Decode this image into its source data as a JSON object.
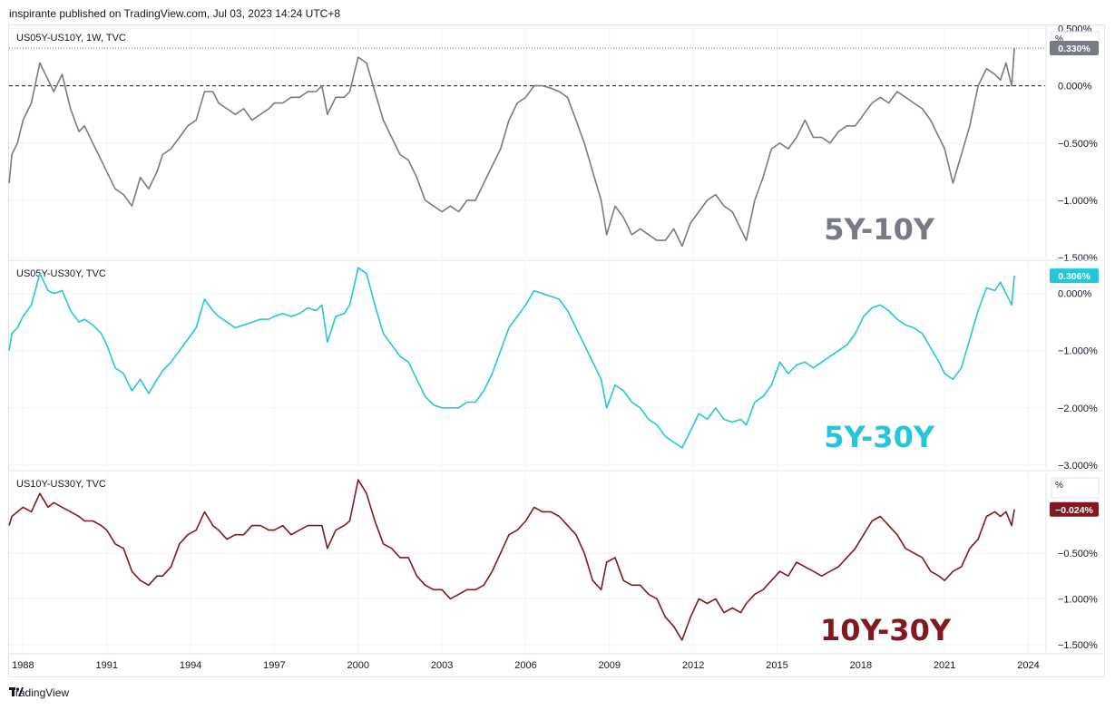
{
  "header": {
    "published_text": "inspirante published on TradingView.com, Jul 03, 2023 14:24 UTC+8"
  },
  "footer": {
    "logo_text": "TradingView",
    "logo_icon": "tradingview-logo-icon"
  },
  "colors": {
    "panel1_line": "#787b86",
    "panel2_line": "#26c6da",
    "panel3_line": "#801922",
    "grid": "#f0f3fa",
    "axis_text": "#131722",
    "panel_border": "#e0e3eb",
    "dashed_zero": "#131722"
  },
  "x_axis": {
    "tick_labels": [
      "1988",
      "1991",
      "1994",
      "1997",
      "2000",
      "2003",
      "2006",
      "2009",
      "2012",
      "2015",
      "2018",
      "2021",
      "2024"
    ],
    "tick_years": [
      1988,
      1991,
      1994,
      1997,
      2000,
      2003,
      2006,
      2009,
      2012,
      2015,
      2018,
      2021,
      2024
    ]
  },
  "chart_data": [
    {
      "type": "line",
      "symbol_label": "US05Y-US10Y, 1W, TVC",
      "watermark": "5Y-10Y",
      "unit_label": "%",
      "last_value_label": "0.330%",
      "y_ticks": [
        "0.500%",
        "0.000%",
        "−0.500%",
        "−1.000%",
        "−1.500%"
      ],
      "y_tick_values": [
        0.5,
        0.0,
        -0.5,
        -1.0,
        -1.5
      ],
      "ylim": [
        -1.5,
        0.52
      ],
      "zero_line": "dashed",
      "last_value_line": "dotted",
      "series": [
        {
          "x": [
            1987.5,
            1987.6,
            1987.8,
            1988.0,
            1988.3,
            1988.6,
            1988.9,
            1989.1,
            1989.4,
            1989.7,
            1990.0,
            1990.2,
            1990.5,
            1990.8,
            1991.0,
            1991.3,
            1991.6,
            1991.9,
            1992.2,
            1992.5,
            1992.8,
            1993.0,
            1993.3,
            1993.6,
            1993.9,
            1994.2,
            1994.5,
            1994.8,
            1995.0,
            1995.3,
            1995.6,
            1995.9,
            1996.2,
            1996.5,
            1996.8,
            1997.0,
            1997.3,
            1997.6,
            1997.9,
            1998.2,
            1998.5,
            1998.7,
            1998.9,
            1999.2,
            1999.5,
            1999.7,
            2000.0,
            2000.3,
            2000.6,
            2000.9,
            2001.2,
            2001.5,
            2001.8,
            2002.1,
            2002.4,
            2002.7,
            2003.0,
            2003.3,
            2003.6,
            2003.9,
            2004.2,
            2004.5,
            2004.8,
            2005.1,
            2005.4,
            2005.7,
            2006.0,
            2006.3,
            2006.6,
            2006.9,
            2007.2,
            2007.5,
            2007.8,
            2008.1,
            2008.4,
            2008.7,
            2008.9,
            2009.2,
            2009.5,
            2009.8,
            2010.1,
            2010.4,
            2010.7,
            2011.0,
            2011.3,
            2011.6,
            2011.9,
            2012.2,
            2012.5,
            2012.8,
            2013.1,
            2013.4,
            2013.7,
            2013.9,
            2014.2,
            2014.5,
            2014.8,
            2015.1,
            2015.4,
            2015.7,
            2016.0,
            2016.3,
            2016.6,
            2016.9,
            2017.2,
            2017.5,
            2017.8,
            2018.1,
            2018.4,
            2018.7,
            2019.0,
            2019.3,
            2019.6,
            2019.9,
            2020.2,
            2020.5,
            2020.8,
            2021.0,
            2021.3,
            2021.6,
            2021.9,
            2022.2,
            2022.5,
            2022.8,
            2023.0,
            2023.2,
            2023.4,
            2023.5
          ],
          "y": [
            -0.85,
            -0.6,
            -0.5,
            -0.3,
            -0.15,
            0.2,
            0.05,
            -0.05,
            0.1,
            -0.2,
            -0.4,
            -0.35,
            -0.5,
            -0.65,
            -0.75,
            -0.9,
            -0.95,
            -1.05,
            -0.8,
            -0.9,
            -0.75,
            -0.6,
            -0.55,
            -0.45,
            -0.35,
            -0.3,
            -0.05,
            -0.05,
            -0.15,
            -0.2,
            -0.25,
            -0.2,
            -0.3,
            -0.25,
            -0.2,
            -0.15,
            -0.15,
            -0.1,
            -0.1,
            -0.05,
            -0.05,
            0.0,
            -0.25,
            -0.1,
            -0.1,
            -0.05,
            0.25,
            0.2,
            -0.05,
            -0.3,
            -0.45,
            -0.6,
            -0.65,
            -0.8,
            -1.0,
            -1.05,
            -1.1,
            -1.05,
            -1.1,
            -1.0,
            -1.0,
            -0.85,
            -0.7,
            -0.55,
            -0.3,
            -0.15,
            -0.1,
            0.0,
            0.0,
            -0.02,
            -0.05,
            -0.1,
            -0.3,
            -0.5,
            -0.75,
            -1.0,
            -1.3,
            -1.05,
            -1.15,
            -1.3,
            -1.25,
            -1.3,
            -1.35,
            -1.35,
            -1.25,
            -1.4,
            -1.2,
            -1.1,
            -1.0,
            -0.95,
            -1.05,
            -1.1,
            -1.25,
            -1.35,
            -1.0,
            -0.8,
            -0.55,
            -0.5,
            -0.55,
            -0.45,
            -0.3,
            -0.45,
            -0.45,
            -0.5,
            -0.4,
            -0.35,
            -0.35,
            -0.25,
            -0.15,
            -0.1,
            -0.15,
            -0.05,
            -0.1,
            -0.15,
            -0.2,
            -0.3,
            -0.45,
            -0.55,
            -0.85,
            -0.6,
            -0.35,
            0.0,
            0.15,
            0.1,
            0.05,
            0.2,
            0.0,
            0.33
          ]
        }
      ]
    },
    {
      "type": "line",
      "symbol_label": "US05Y-US30Y, TVC",
      "watermark": "5Y-30Y",
      "unit_label": "%",
      "last_value_label": "0.306%",
      "y_ticks": [
        "0.000%",
        "−1.000%",
        "−2.000%",
        "−3.000%"
      ],
      "y_tick_values": [
        0.0,
        -1.0,
        -2.0,
        -3.0
      ],
      "ylim": [
        -3.05,
        0.55
      ],
      "series": [
        {
          "x": [
            1987.5,
            1987.6,
            1987.8,
            1988.0,
            1988.3,
            1988.6,
            1988.9,
            1989.1,
            1989.4,
            1989.7,
            1990.0,
            1990.2,
            1990.5,
            1990.8,
            1991.0,
            1991.3,
            1991.6,
            1991.9,
            1992.2,
            1992.5,
            1992.8,
            1993.0,
            1993.3,
            1993.6,
            1993.9,
            1994.2,
            1994.5,
            1994.8,
            1995.0,
            1995.3,
            1995.6,
            1995.9,
            1996.2,
            1996.5,
            1996.8,
            1997.0,
            1997.3,
            1997.6,
            1997.9,
            1998.2,
            1998.5,
            1998.7,
            1998.9,
            1999.2,
            1999.5,
            1999.7,
            2000.0,
            2000.3,
            2000.6,
            2000.9,
            2001.2,
            2001.5,
            2001.8,
            2002.1,
            2002.4,
            2002.7,
            2003.0,
            2003.3,
            2003.6,
            2003.9,
            2004.2,
            2004.5,
            2004.8,
            2005.1,
            2005.4,
            2005.7,
            2006.0,
            2006.3,
            2006.6,
            2006.9,
            2007.2,
            2007.5,
            2007.8,
            2008.1,
            2008.4,
            2008.7,
            2008.9,
            2009.2,
            2009.5,
            2009.8,
            2010.1,
            2010.4,
            2010.7,
            2011.0,
            2011.3,
            2011.6,
            2011.9,
            2012.2,
            2012.5,
            2012.8,
            2013.1,
            2013.4,
            2013.7,
            2013.9,
            2014.2,
            2014.5,
            2014.8,
            2015.1,
            2015.4,
            2015.7,
            2016.0,
            2016.3,
            2016.6,
            2016.9,
            2017.2,
            2017.5,
            2017.8,
            2018.1,
            2018.4,
            2018.7,
            2019.0,
            2019.3,
            2019.6,
            2019.9,
            2020.2,
            2020.5,
            2020.8,
            2021.0,
            2021.3,
            2021.6,
            2021.9,
            2022.2,
            2022.5,
            2022.8,
            2023.0,
            2023.2,
            2023.4,
            2023.5
          ],
          "y": [
            -1.0,
            -0.7,
            -0.6,
            -0.4,
            -0.2,
            0.35,
            0.05,
            0.0,
            0.05,
            -0.3,
            -0.5,
            -0.45,
            -0.55,
            -0.7,
            -0.9,
            -1.3,
            -1.4,
            -1.7,
            -1.5,
            -1.75,
            -1.5,
            -1.35,
            -1.2,
            -1.0,
            -0.8,
            -0.6,
            -0.1,
            -0.3,
            -0.4,
            -0.5,
            -0.6,
            -0.55,
            -0.5,
            -0.45,
            -0.45,
            -0.4,
            -0.35,
            -0.4,
            -0.35,
            -0.25,
            -0.3,
            -0.2,
            -0.85,
            -0.4,
            -0.35,
            -0.2,
            0.45,
            0.35,
            -0.2,
            -0.7,
            -0.9,
            -1.1,
            -1.2,
            -1.5,
            -1.8,
            -1.95,
            -2.0,
            -2.0,
            -2.0,
            -1.9,
            -1.9,
            -1.7,
            -1.4,
            -1.0,
            -0.6,
            -0.4,
            -0.2,
            0.05,
            0.0,
            -0.05,
            -0.1,
            -0.3,
            -0.6,
            -0.9,
            -1.2,
            -1.5,
            -2.0,
            -1.6,
            -1.7,
            -1.9,
            -2.0,
            -2.2,
            -2.3,
            -2.5,
            -2.6,
            -2.7,
            -2.4,
            -2.1,
            -2.2,
            -2.0,
            -2.2,
            -2.25,
            -2.2,
            -2.3,
            -1.9,
            -1.8,
            -1.6,
            -1.2,
            -1.4,
            -1.25,
            -1.2,
            -1.3,
            -1.2,
            -1.1,
            -1.0,
            -0.9,
            -0.7,
            -0.4,
            -0.25,
            -0.2,
            -0.3,
            -0.45,
            -0.55,
            -0.6,
            -0.7,
            -0.95,
            -1.2,
            -1.4,
            -1.5,
            -1.3,
            -0.8,
            -0.3,
            0.1,
            0.05,
            0.2,
            0.0,
            -0.2,
            0.31
          ]
        }
      ]
    },
    {
      "type": "line",
      "symbol_label": "US10Y-US30Y, TVC",
      "watermark": "10Y-30Y",
      "unit_label": "%",
      "last_value_label": "−0.024%",
      "y_ticks": [
        "−0.500%",
        "−1.000%",
        "−1.500%"
      ],
      "y_tick_values": [
        -0.5,
        -1.0,
        -1.5
      ],
      "ylim": [
        -1.58,
        0.38
      ],
      "series": [
        {
          "x": [
            1987.5,
            1987.6,
            1987.8,
            1988.0,
            1988.3,
            1988.6,
            1988.9,
            1989.1,
            1989.4,
            1989.7,
            1990.0,
            1990.2,
            1990.5,
            1990.8,
            1991.0,
            1991.3,
            1991.6,
            1991.9,
            1992.2,
            1992.5,
            1992.8,
            1993.0,
            1993.3,
            1993.6,
            1993.9,
            1994.2,
            1994.5,
            1994.8,
            1995.0,
            1995.3,
            1995.6,
            1995.9,
            1996.2,
            1996.5,
            1996.8,
            1997.0,
            1997.3,
            1997.6,
            1997.9,
            1998.2,
            1998.5,
            1998.7,
            1998.9,
            1999.2,
            1999.5,
            1999.7,
            2000.0,
            2000.3,
            2000.6,
            2000.9,
            2001.2,
            2001.5,
            2001.8,
            2002.1,
            2002.4,
            2002.7,
            2003.0,
            2003.3,
            2003.6,
            2003.9,
            2004.2,
            2004.5,
            2004.8,
            2005.1,
            2005.4,
            2005.7,
            2006.0,
            2006.3,
            2006.6,
            2006.9,
            2007.2,
            2007.5,
            2007.8,
            2008.1,
            2008.4,
            2008.7,
            2008.9,
            2009.2,
            2009.5,
            2009.8,
            2010.1,
            2010.4,
            2010.7,
            2011.0,
            2011.3,
            2011.6,
            2011.9,
            2012.2,
            2012.5,
            2012.8,
            2013.1,
            2013.4,
            2013.7,
            2013.9,
            2014.2,
            2014.5,
            2014.8,
            2015.1,
            2015.4,
            2015.7,
            2016.0,
            2016.3,
            2016.6,
            2016.9,
            2017.2,
            2017.5,
            2017.8,
            2018.1,
            2018.4,
            2018.7,
            2019.0,
            2019.3,
            2019.6,
            2019.9,
            2020.2,
            2020.5,
            2020.8,
            2021.0,
            2021.3,
            2021.6,
            2021.9,
            2022.2,
            2022.5,
            2022.8,
            2023.0,
            2023.2,
            2023.4,
            2023.5
          ],
          "y": [
            -0.2,
            -0.1,
            -0.05,
            0.0,
            -0.05,
            0.15,
            0.0,
            0.05,
            0.0,
            -0.05,
            -0.1,
            -0.15,
            -0.15,
            -0.2,
            -0.25,
            -0.4,
            -0.45,
            -0.7,
            -0.8,
            -0.85,
            -0.75,
            -0.75,
            -0.65,
            -0.4,
            -0.3,
            -0.25,
            -0.05,
            -0.2,
            -0.25,
            -0.35,
            -0.3,
            -0.3,
            -0.2,
            -0.2,
            -0.25,
            -0.25,
            -0.2,
            -0.3,
            -0.25,
            -0.2,
            -0.2,
            -0.2,
            -0.45,
            -0.25,
            -0.2,
            -0.15,
            0.3,
            0.15,
            -0.15,
            -0.4,
            -0.45,
            -0.55,
            -0.55,
            -0.75,
            -0.85,
            -0.9,
            -0.9,
            -1.0,
            -0.95,
            -0.9,
            -0.9,
            -0.85,
            -0.7,
            -0.5,
            -0.3,
            -0.25,
            -0.15,
            0.0,
            -0.05,
            -0.05,
            -0.1,
            -0.2,
            -0.3,
            -0.5,
            -0.8,
            -0.9,
            -0.6,
            -0.55,
            -0.8,
            -0.85,
            -0.85,
            -0.95,
            -1.0,
            -1.2,
            -1.3,
            -1.45,
            -1.2,
            -1.0,
            -1.05,
            -1.0,
            -1.15,
            -1.1,
            -1.15,
            -1.05,
            -0.95,
            -0.9,
            -0.8,
            -0.7,
            -0.75,
            -0.6,
            -0.65,
            -0.7,
            -0.75,
            -0.7,
            -0.65,
            -0.55,
            -0.45,
            -0.3,
            -0.15,
            -0.1,
            -0.2,
            -0.3,
            -0.45,
            -0.5,
            -0.55,
            -0.7,
            -0.75,
            -0.8,
            -0.7,
            -0.65,
            -0.45,
            -0.35,
            -0.1,
            -0.05,
            -0.1,
            -0.05,
            -0.2,
            -0.024
          ]
        }
      ]
    }
  ]
}
